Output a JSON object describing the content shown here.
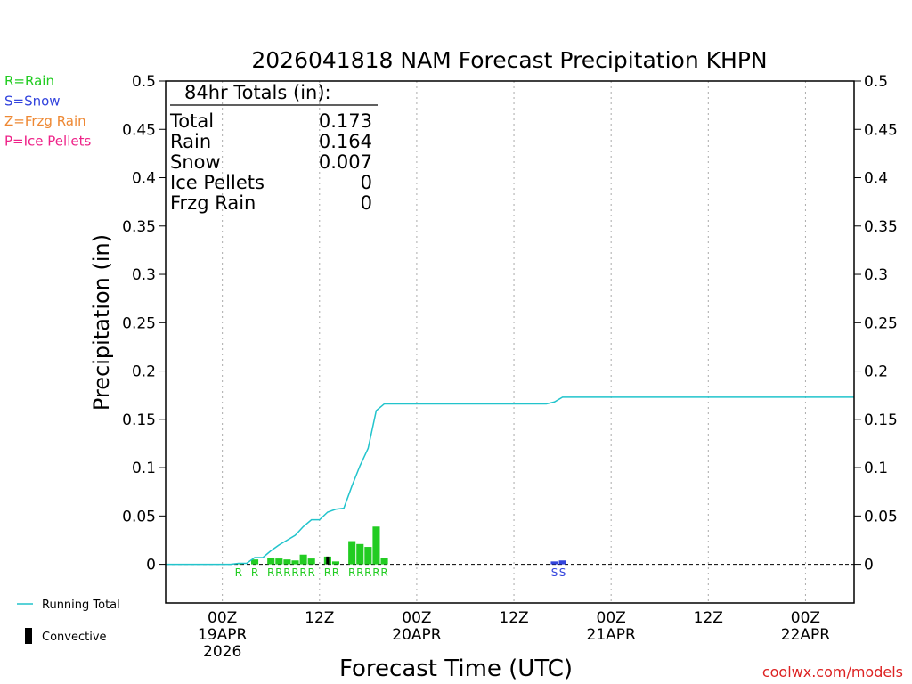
{
  "chart_data": {
    "type": "bar+line",
    "title": "2026041818 NAM Forecast Precipitation KHPN",
    "ylabel": "Precipitation (in)",
    "xlabel": "Forecast Time (UTC)",
    "watermark": "coolwx.com/models",
    "ylim": [
      -0.04,
      0.5
    ],
    "yticks": [
      0,
      0.05,
      0.1,
      0.15,
      0.2,
      0.25,
      0.3,
      0.35,
      0.4,
      0.45,
      0.5
    ],
    "ytick_labels": [
      "0",
      "0.05",
      "0.1",
      "0.15",
      "0.2",
      "0.25",
      "0.3",
      "0.35",
      "0.4",
      "0.45",
      "0.5"
    ],
    "x_units": "forecast hours from 2026041818",
    "xlim": [
      -1,
      84
    ],
    "x_ticks": [
      {
        "hour": 6,
        "lines": [
          "00Z",
          "19APR",
          "2026"
        ]
      },
      {
        "hour": 18,
        "lines": [
          "12Z"
        ]
      },
      {
        "hour": 30,
        "lines": [
          "00Z",
          "20APR"
        ]
      },
      {
        "hour": 42,
        "lines": [
          "12Z"
        ]
      },
      {
        "hour": 54,
        "lines": [
          "00Z",
          "21APR"
        ]
      },
      {
        "hour": 66,
        "lines": [
          "12Z"
        ]
      },
      {
        "hour": 78,
        "lines": [
          "00Z",
          "22APR"
        ]
      }
    ],
    "type_legend": [
      {
        "code": "R",
        "text": "R=Rain",
        "color": "#22cc22"
      },
      {
        "code": "S",
        "text": "S=Snow",
        "color": "#3344dd"
      },
      {
        "code": "Z",
        "text": "Z=Frzg Rain",
        "color": "#ee8833"
      },
      {
        "code": "P",
        "text": "P=Ice Pellets",
        "color": "#ee2288"
      }
    ],
    "series_legend": [
      {
        "name": "Running Total",
        "kind": "line",
        "color": "#22c4cc"
      },
      {
        "name": "Convective",
        "kind": "bar",
        "color": "#000000"
      }
    ],
    "totals_box": {
      "header": "84hr Totals (in):",
      "rows": [
        {
          "label": "Total",
          "value": "0.173"
        },
        {
          "label": "Rain",
          "value": "0.164"
        },
        {
          "label": "Snow",
          "value": "0.007"
        },
        {
          "label": "Ice Pellets",
          "value": "0"
        },
        {
          "label": "Frzg Rain",
          "value": "0"
        }
      ]
    },
    "hourly_bars": [
      {
        "hour": 8,
        "value": 0.001,
        "type": "R"
      },
      {
        "hour": 10,
        "value": 0.005,
        "type": "R"
      },
      {
        "hour": 12,
        "value": 0.007,
        "type": "R"
      },
      {
        "hour": 13,
        "value": 0.006,
        "type": "R"
      },
      {
        "hour": 14,
        "value": 0.005,
        "type": "R"
      },
      {
        "hour": 15,
        "value": 0.004,
        "type": "R"
      },
      {
        "hour": 16,
        "value": 0.01,
        "type": "R"
      },
      {
        "hour": 17,
        "value": 0.006,
        "type": "R"
      },
      {
        "hour": 19,
        "value": 0.008,
        "type": "R",
        "convective": 0.008
      },
      {
        "hour": 20,
        "value": 0.003,
        "type": "R"
      },
      {
        "hour": 22,
        "value": 0.024,
        "type": "R"
      },
      {
        "hour": 23,
        "value": 0.021,
        "type": "R"
      },
      {
        "hour": 24,
        "value": 0.018,
        "type": "R"
      },
      {
        "hour": 25,
        "value": 0.039,
        "type": "R"
      },
      {
        "hour": 26,
        "value": 0.007,
        "type": "R"
      },
      {
        "hour": 47,
        "value": 0.003,
        "type": "S"
      },
      {
        "hour": 48,
        "value": 0.004,
        "type": "S"
      }
    ],
    "running_total": {
      "x": [
        -1,
        7,
        8,
        9,
        10,
        11,
        12,
        13,
        14,
        15,
        16,
        17,
        18,
        19,
        20,
        21,
        22,
        23,
        24,
        25,
        26,
        46,
        47,
        48,
        84
      ],
      "y": [
        0,
        0,
        0.001,
        0.001,
        0.007,
        0.007,
        0.014,
        0.02,
        0.025,
        0.03,
        0.039,
        0.046,
        0.046,
        0.054,
        0.057,
        0.058,
        0.081,
        0.102,
        0.12,
        0.159,
        0.166,
        0.166,
        0.168,
        0.173,
        0.173
      ]
    },
    "type_letters": [
      {
        "hour": 8,
        "letter": "R"
      },
      {
        "hour": 10,
        "letter": "R"
      },
      {
        "hour": 12,
        "letter": "R"
      },
      {
        "hour": 13,
        "letter": "R"
      },
      {
        "hour": 14,
        "letter": "R"
      },
      {
        "hour": 15,
        "letter": "R"
      },
      {
        "hour": 16,
        "letter": "R"
      },
      {
        "hour": 17,
        "letter": "R"
      },
      {
        "hour": 19,
        "letter": "R"
      },
      {
        "hour": 20,
        "letter": "R"
      },
      {
        "hour": 22,
        "letter": "R"
      },
      {
        "hour": 23,
        "letter": "R"
      },
      {
        "hour": 24,
        "letter": "R"
      },
      {
        "hour": 25,
        "letter": "R"
      },
      {
        "hour": 26,
        "letter": "R"
      },
      {
        "hour": 47,
        "letter": "S"
      },
      {
        "hour": 48,
        "letter": "S"
      }
    ]
  }
}
